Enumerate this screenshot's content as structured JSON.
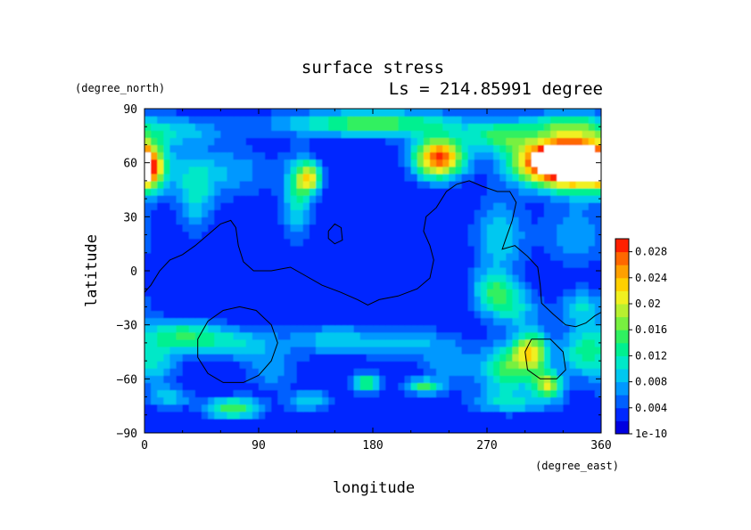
{
  "chart_data": {
    "type": "heatmap",
    "title": "surface stress",
    "subtitle": "Ls = 214.85991 degree",
    "xlabel": "longitude",
    "ylabel": "latitude",
    "x_unit": "(degree_east)",
    "y_unit": "(degree_north)",
    "xlim": [
      0,
      360
    ],
    "ylim": [
      -90,
      90
    ],
    "x_ticks": [
      "0",
      "90",
      "180",
      "270",
      "360"
    ],
    "y_ticks": [
      "90",
      "60",
      "30",
      "0",
      "−30",
      "−60",
      "−90"
    ],
    "x_tick_values": [
      0,
      90,
      180,
      270,
      360
    ],
    "y_tick_values": [
      90,
      60,
      30,
      0,
      -30,
      -60,
      -90
    ],
    "colorbar": {
      "ticks": [
        "1e-10",
        "0.004",
        "0.008",
        "0.012",
        "0.016",
        "0.02",
        "0.024",
        "0.028"
      ],
      "tick_values": [
        0,
        0.004,
        0.008,
        0.012,
        0.016,
        0.02,
        0.024,
        0.028
      ],
      "range": [
        0,
        0.03
      ],
      "colors": [
        "#0000e0",
        "#0028ff",
        "#0060ff",
        "#0098ff",
        "#00c8f0",
        "#00e8c8",
        "#00f090",
        "#30f060",
        "#78f040",
        "#b8f030",
        "#f0f020",
        "#ffd000",
        "#ffa000",
        "#ff6800",
        "#ff2000"
      ]
    },
    "background_level": 0.002,
    "hotspots": [
      {
        "lon": 320,
        "lat": 61,
        "value": 0.031,
        "sx": 22,
        "sy": 9
      },
      {
        "lon": 345,
        "lat": 60,
        "value": 0.026,
        "sx": 18,
        "sy": 10
      },
      {
        "lon": 232,
        "lat": 63,
        "value": 0.027,
        "sx": 14,
        "sy": 8
      },
      {
        "lon": 180,
        "lat": 82,
        "value": 0.014,
        "sx": 50,
        "sy": 5
      },
      {
        "lon": 20,
        "lat": 78,
        "value": 0.007,
        "sx": 30,
        "sy": 6
      },
      {
        "lon": 330,
        "lat": 82,
        "value": 0.009,
        "sx": 20,
        "sy": 5
      },
      {
        "lon": 280,
        "lat": 75,
        "value": 0.011,
        "sx": 18,
        "sy": 6
      },
      {
        "lon": 3,
        "lat": 56,
        "value": 0.015,
        "sx": 8,
        "sy": 8
      },
      {
        "lon": 130,
        "lat": 52,
        "value": 0.018,
        "sx": 7,
        "sy": 6
      },
      {
        "lon": 120,
        "lat": 40,
        "value": 0.009,
        "sx": 8,
        "sy": 16
      },
      {
        "lon": 60,
        "lat": 55,
        "value": 0.006,
        "sx": 30,
        "sy": 10
      },
      {
        "lon": 40,
        "lat": 40,
        "value": 0.007,
        "sx": 10,
        "sy": 14
      },
      {
        "lon": 280,
        "lat": 20,
        "value": 0.008,
        "sx": 14,
        "sy": 14
      },
      {
        "lon": 275,
        "lat": -10,
        "value": 0.01,
        "sx": 12,
        "sy": 8
      },
      {
        "lon": 340,
        "lat": 20,
        "value": 0.006,
        "sx": 18,
        "sy": 12
      },
      {
        "lon": 290,
        "lat": -20,
        "value": 0.008,
        "sx": 15,
        "sy": 8
      },
      {
        "lon": 345,
        "lat": -20,
        "value": 0.008,
        "sx": 12,
        "sy": 7
      },
      {
        "lon": 30,
        "lat": -35,
        "value": 0.01,
        "sx": 20,
        "sy": 6
      },
      {
        "lon": 70,
        "lat": -40,
        "value": 0.008,
        "sx": 25,
        "sy": 6
      },
      {
        "lon": 150,
        "lat": -38,
        "value": 0.007,
        "sx": 25,
        "sy": 6
      },
      {
        "lon": 210,
        "lat": -40,
        "value": 0.006,
        "sx": 25,
        "sy": 6
      },
      {
        "lon": 10,
        "lat": -50,
        "value": 0.007,
        "sx": 12,
        "sy": 10
      },
      {
        "lon": 305,
        "lat": -45,
        "value": 0.018,
        "sx": 10,
        "sy": 8
      },
      {
        "lon": 318,
        "lat": -63,
        "value": 0.017,
        "sx": 8,
        "sy": 5
      },
      {
        "lon": 285,
        "lat": -55,
        "value": 0.012,
        "sx": 15,
        "sy": 10
      },
      {
        "lon": 345,
        "lat": -45,
        "value": 0.01,
        "sx": 12,
        "sy": 10
      },
      {
        "lon": 175,
        "lat": -62,
        "value": 0.012,
        "sx": 8,
        "sy": 4
      },
      {
        "lon": 220,
        "lat": -64,
        "value": 0.012,
        "sx": 10,
        "sy": 3
      },
      {
        "lon": 70,
        "lat": -76,
        "value": 0.014,
        "sx": 15,
        "sy": 4
      },
      {
        "lon": 130,
        "lat": -72,
        "value": 0.008,
        "sx": 12,
        "sy": 4
      },
      {
        "lon": 20,
        "lat": -70,
        "value": 0.007,
        "sx": 12,
        "sy": 4
      },
      {
        "lon": 290,
        "lat": -73,
        "value": 0.007,
        "sx": 25,
        "sy": 4
      },
      {
        "lon": 100,
        "lat": -55,
        "value": 0.005,
        "sx": 15,
        "sy": 8
      },
      {
        "lon": 240,
        "lat": -52,
        "value": 0.005,
        "sx": 15,
        "sy": 8
      }
    ],
    "contour_lines": [
      [
        [
          0,
          -12
        ],
        [
          5,
          -8
        ],
        [
          12,
          0
        ],
        [
          20,
          6
        ],
        [
          30,
          9
        ],
        [
          40,
          14
        ],
        [
          50,
          20
        ],
        [
          60,
          26
        ],
        [
          68,
          28
        ],
        [
          72,
          24
        ],
        [
          74,
          14
        ],
        [
          78,
          5
        ],
        [
          86,
          0
        ],
        [
          100,
          0
        ],
        [
          115,
          2
        ],
        [
          125,
          -2
        ],
        [
          140,
          -8
        ],
        [
          155,
          -12
        ],
        [
          168,
          -16
        ],
        [
          176,
          -19
        ],
        [
          185,
          -16
        ],
        [
          200,
          -14
        ],
        [
          215,
          -10
        ],
        [
          225,
          -4
        ],
        [
          228,
          6
        ],
        [
          225,
          14
        ],
        [
          220,
          22
        ],
        [
          222,
          30
        ],
        [
          230,
          35
        ],
        [
          238,
          44
        ],
        [
          246,
          48
        ],
        [
          256,
          50
        ],
        [
          266,
          47
        ],
        [
          278,
          44
        ],
        [
          288,
          44
        ],
        [
          293,
          38
        ],
        [
          290,
          28
        ],
        [
          285,
          18
        ],
        [
          282,
          12
        ],
        [
          292,
          14
        ],
        [
          302,
          8
        ],
        [
          310,
          2
        ],
        [
          312,
          -8
        ],
        [
          313,
          -18
        ],
        [
          322,
          -24
        ],
        [
          332,
          -30
        ],
        [
          340,
          -31
        ],
        [
          348,
          -29
        ],
        [
          355,
          -25
        ],
        [
          360,
          -23
        ]
      ],
      [
        [
          75,
          -20
        ],
        [
          88,
          -22
        ],
        [
          100,
          -30
        ],
        [
          105,
          -40
        ],
        [
          100,
          -50
        ],
        [
          90,
          -58
        ],
        [
          78,
          -62
        ],
        [
          62,
          -62
        ],
        [
          50,
          -57
        ],
        [
          42,
          -48
        ],
        [
          42,
          -38
        ],
        [
          50,
          -28
        ],
        [
          62,
          -22
        ],
        [
          75,
          -20
        ]
      ],
      [
        [
          305,
          -38
        ],
        [
          320,
          -38
        ],
        [
          330,
          -45
        ],
        [
          332,
          -55
        ],
        [
          325,
          -60
        ],
        [
          312,
          -60
        ],
        [
          302,
          -55
        ],
        [
          300,
          -45
        ],
        [
          305,
          -38
        ]
      ],
      [
        [
          145,
          22
        ],
        [
          150,
          26
        ],
        [
          155,
          24
        ],
        [
          156,
          17
        ],
        [
          150,
          15
        ],
        [
          145,
          18
        ],
        [
          145,
          22
        ]
      ]
    ]
  }
}
